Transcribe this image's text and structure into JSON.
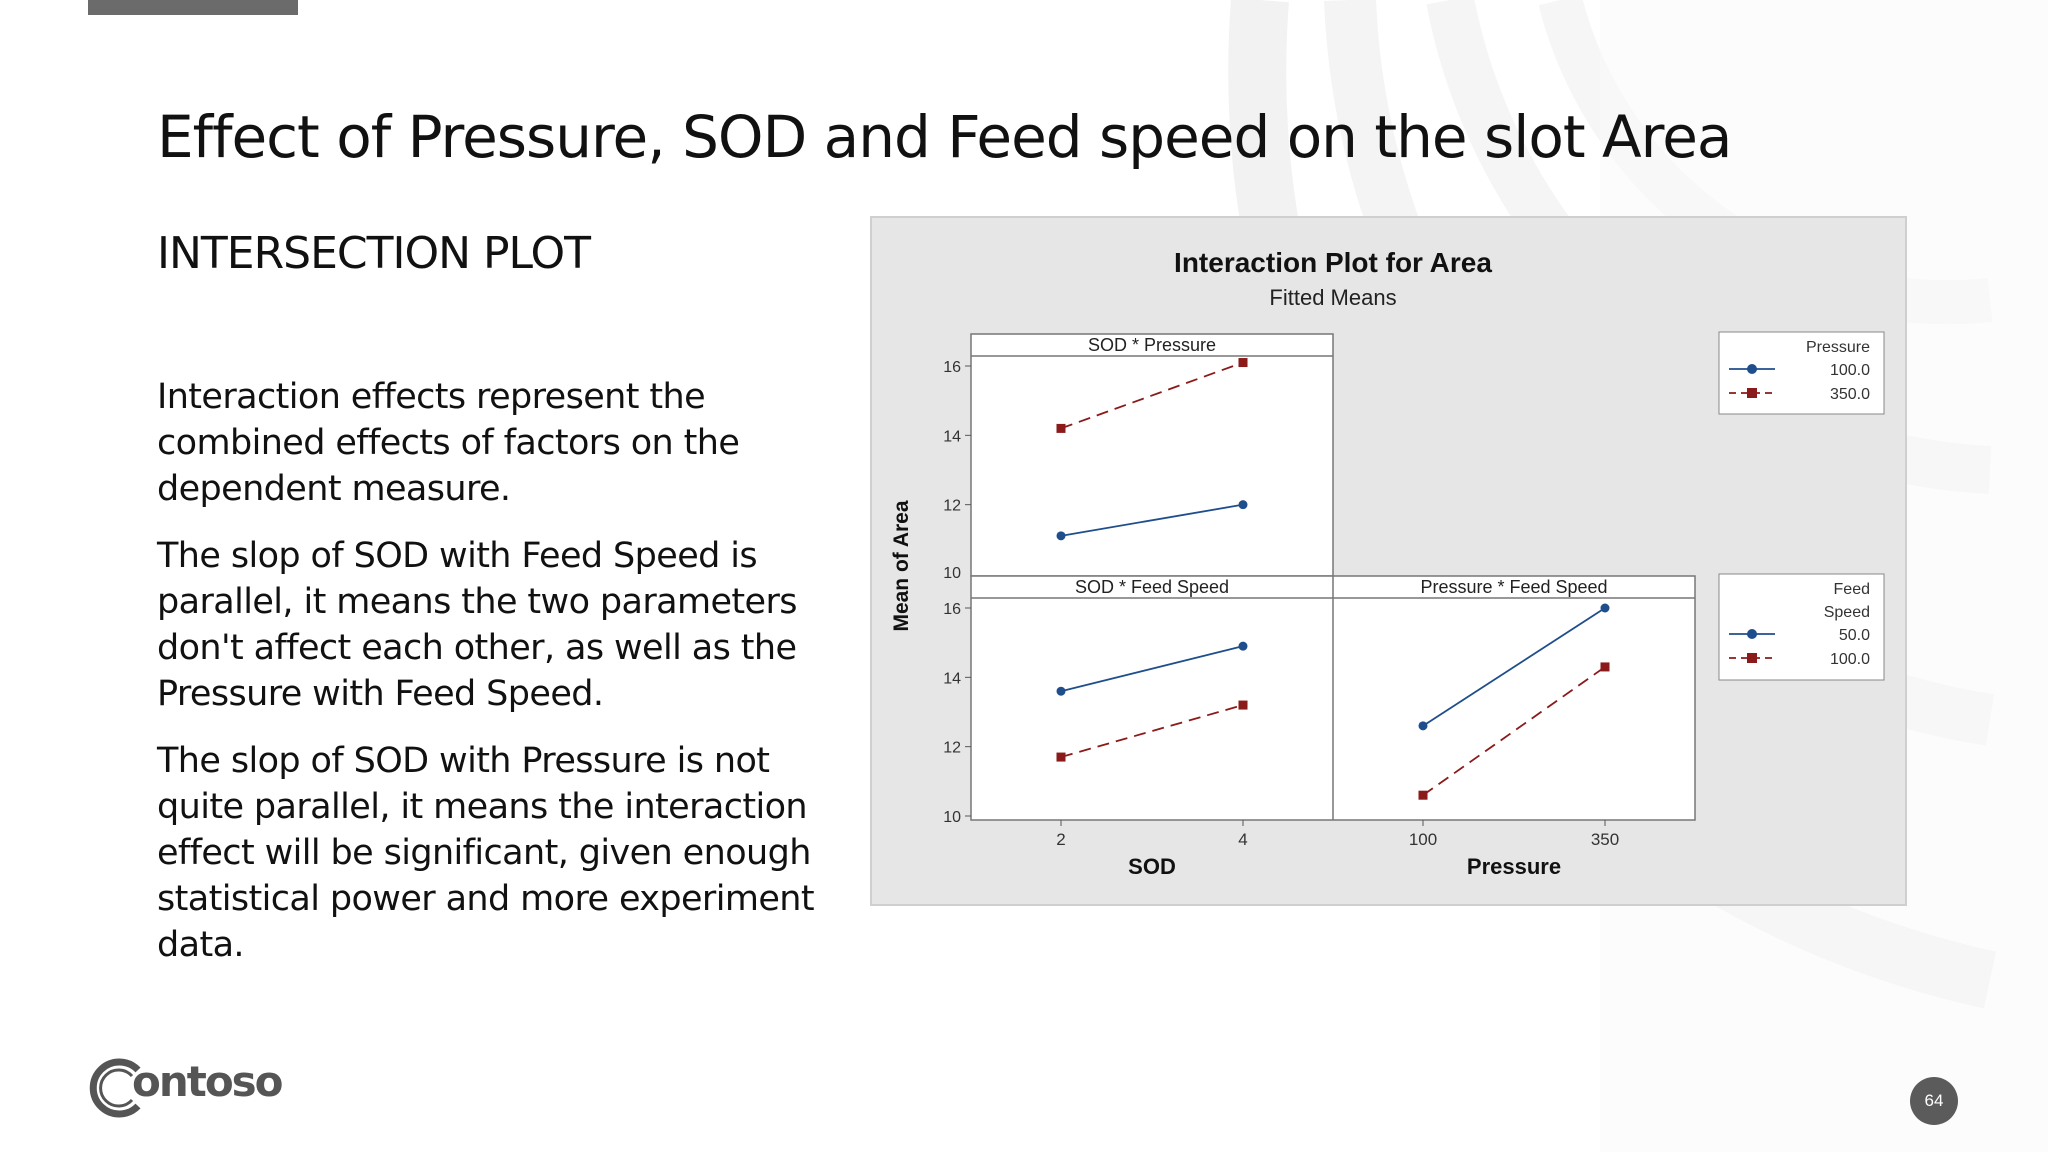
{
  "slide": {
    "title": "Effect of Pressure, SOD and Feed speed on the slot Area",
    "subtitle": "INTERSECTION PLOT",
    "paragraphs": [
      "Interaction effects represent the combined effects of factors on the dependent measure.",
      "The slop of SOD with Feed Speed is parallel, it means the two parameters don't affect each other, as well as the Pressure with Feed Speed.",
      "The slop of SOD with Pressure is not quite parallel, it means the interaction effect will be significant, given enough statistical power and more experiment data."
    ],
    "page_number": "64",
    "logo_text": "ontoso"
  },
  "colors": {
    "series_1": "#1f4e8c",
    "series_2": "#8b1a1a",
    "chart_bg": "#e6e6e6",
    "panel_bg": "#ffffff"
  },
  "chart_data": {
    "type": "line",
    "title": "Interaction Plot for Area",
    "subtitle": "Fitted Means",
    "ylabel": "Mean of Area",
    "ylim": [
      10,
      16
    ],
    "y_ticks": [
      10,
      12,
      14,
      16
    ],
    "legends": [
      {
        "title": "Pressure",
        "entries": [
          "100.0",
          "350.0"
        ]
      },
      {
        "title_lines": [
          "Feed",
          "Speed"
        ],
        "entries": [
          "50.0",
          "100.0"
        ]
      }
    ],
    "panels": [
      {
        "title": "SOD * Pressure",
        "row": 0,
        "col": 0,
        "x": [
          2,
          4
        ],
        "x_tick_labels": [
          "2",
          "4"
        ],
        "series": [
          {
            "legend": 0,
            "style": "solid",
            "values": [
              11.1,
              12.0
            ]
          },
          {
            "legend": 0,
            "style": "dashed",
            "values": [
              14.2,
              16.1
            ]
          }
        ]
      },
      {
        "title": "SOD * Feed Speed",
        "row": 1,
        "col": 0,
        "x": [
          2,
          4
        ],
        "x_tick_labels": [
          "2",
          "4"
        ],
        "xlabel": "SOD",
        "series": [
          {
            "legend": 1,
            "style": "solid",
            "values": [
              13.6,
              14.9
            ]
          },
          {
            "legend": 1,
            "style": "dashed",
            "values": [
              11.7,
              13.2
            ]
          }
        ]
      },
      {
        "title": "Pressure * Feed Speed",
        "row": 1,
        "col": 1,
        "x": [
          100,
          350
        ],
        "x_tick_labels": [
          "100",
          "350"
        ],
        "xlabel": "Pressure",
        "series": [
          {
            "legend": 1,
            "style": "solid",
            "values": [
              12.6,
              16.0
            ]
          },
          {
            "legend": 1,
            "style": "dashed",
            "values": [
              10.6,
              14.3
            ]
          }
        ]
      }
    ]
  }
}
